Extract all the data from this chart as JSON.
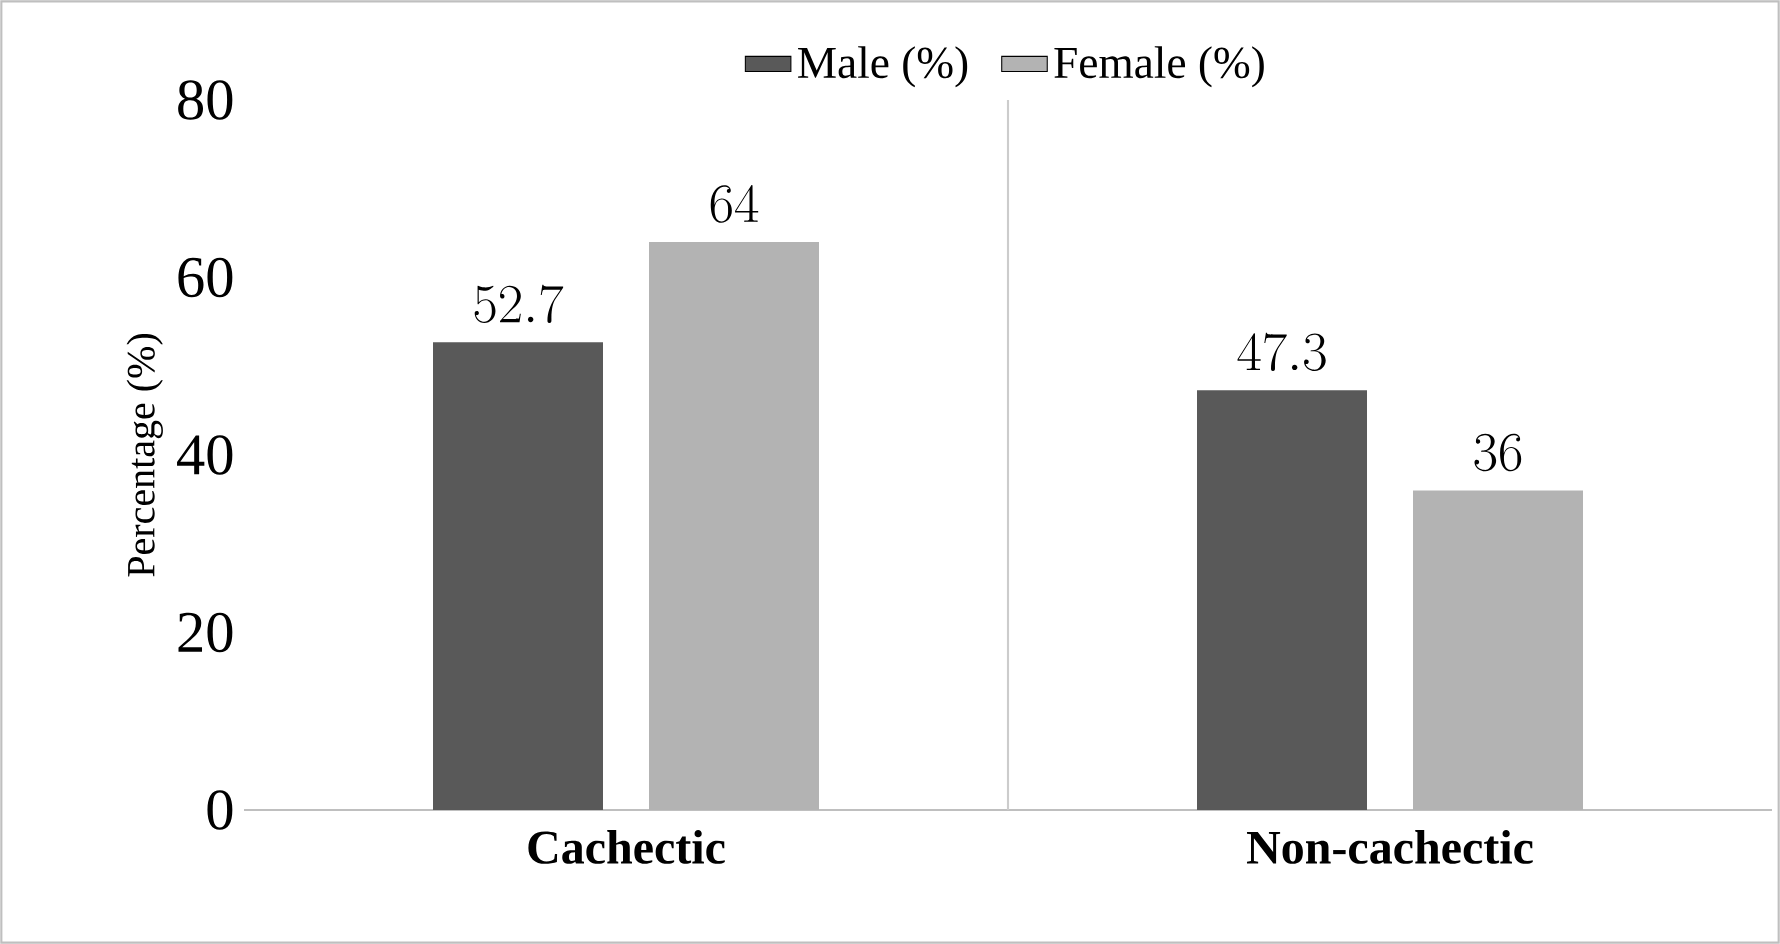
{
  "chart_data": {
    "type": "bar",
    "ylabel": "Percentage (%)",
    "categories": [
      "**Cachectic**",
      "**Non-cachectic**"
    ],
    "series": [
      {
        "name": "Male (%)",
        "color": "#595959",
        "values": [
          52.7,
          47.3
        ]
      },
      {
        "name": "Female (%)",
        "color": "#b3b3b3",
        "values": [
          64,
          36
        ]
      }
    ],
    "ylim": [
      0,
      80
    ],
    "yticks": [
      0,
      20,
      40,
      60,
      80
    ],
    "data_labels": true,
    "legend": "top",
    "grid": false
  }
}
